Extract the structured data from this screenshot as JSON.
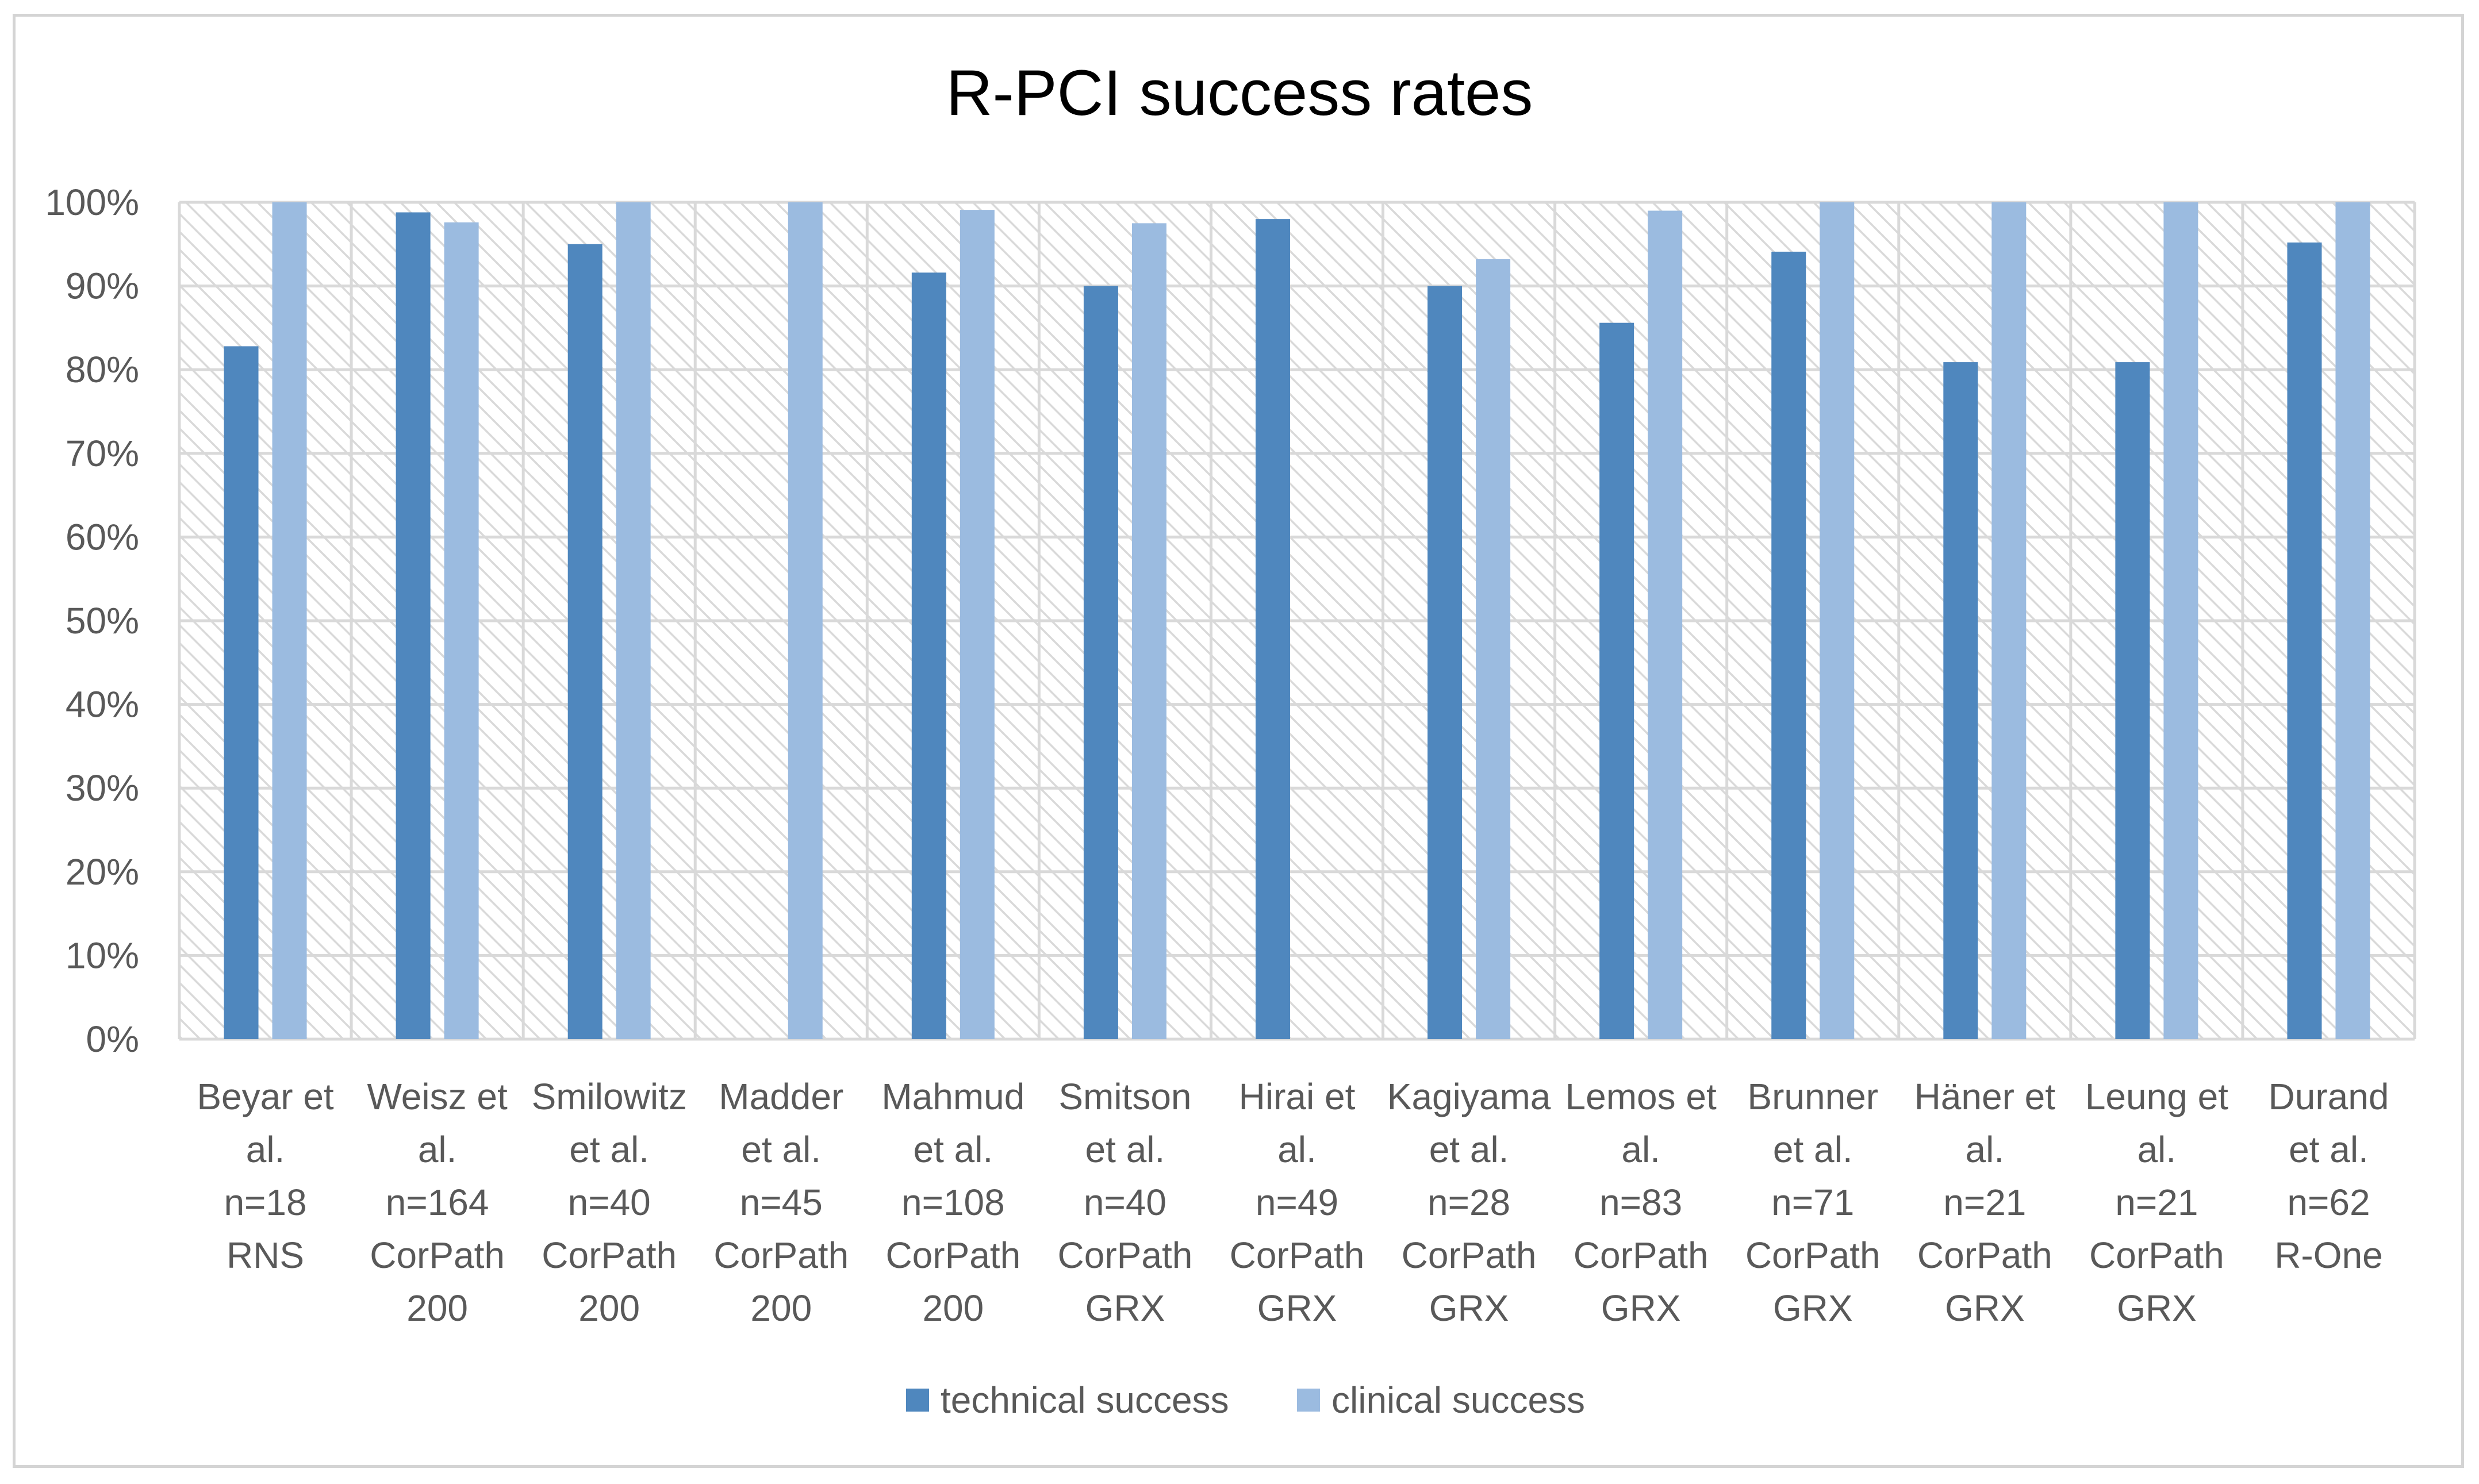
{
  "chart_data": {
    "type": "bar",
    "title": "R-PCI success rates",
    "xlabel": "",
    "ylabel": "",
    "ylim": [
      0,
      100
    ],
    "yticks": [
      "0%",
      "10%",
      "20%",
      "30%",
      "40%",
      "50%",
      "60%",
      "70%",
      "80%",
      "90%",
      "100%"
    ],
    "categories": [
      [
        "Beyar et",
        "al.",
        "n=18",
        "RNS"
      ],
      [
        "Weisz et",
        "al.",
        "n=164",
        "CorPath",
        "200"
      ],
      [
        "Smilowitz",
        "et al.",
        "n=40",
        "CorPath",
        "200"
      ],
      [
        "Madder",
        "et al.",
        "n=45",
        "CorPath",
        "200"
      ],
      [
        "Mahmud",
        "et al.",
        "n=108",
        "CorPath",
        "200"
      ],
      [
        "Smitson",
        "et al.",
        "n=40",
        "CorPath",
        "GRX"
      ],
      [
        "Hirai et",
        "al.",
        "n=49",
        "CorPath",
        "GRX"
      ],
      [
        "Kagiyama",
        "et al.",
        "n=28",
        "CorPath",
        "GRX"
      ],
      [
        "Lemos et",
        "al.",
        "n=83",
        "CorPath",
        "GRX"
      ],
      [
        "Brunner",
        "et al.",
        "n=71",
        "CorPath",
        "GRX"
      ],
      [
        "Häner et",
        "al.",
        "n=21",
        "CorPath",
        "GRX"
      ],
      [
        "Leung et",
        "al.",
        "n=21",
        "CorPath",
        "GRX"
      ],
      [
        "Durand",
        "et al.",
        "n=62",
        "R-One"
      ]
    ],
    "series": [
      {
        "name": "technical success",
        "color": "#4f87be",
        "values": [
          82.8,
          98.8,
          95.0,
          null,
          91.6,
          90.0,
          98.0,
          90.0,
          85.6,
          94.1,
          80.9,
          80.9,
          95.2
        ]
      },
      {
        "name": "clinical success",
        "color": "#9bbbe0",
        "values": [
          100,
          97.6,
          100,
          100,
          99.1,
          97.5,
          null,
          93.2,
          99.0,
          100,
          100,
          100,
          100
        ]
      }
    ],
    "grid": true,
    "legend": "bottom"
  }
}
